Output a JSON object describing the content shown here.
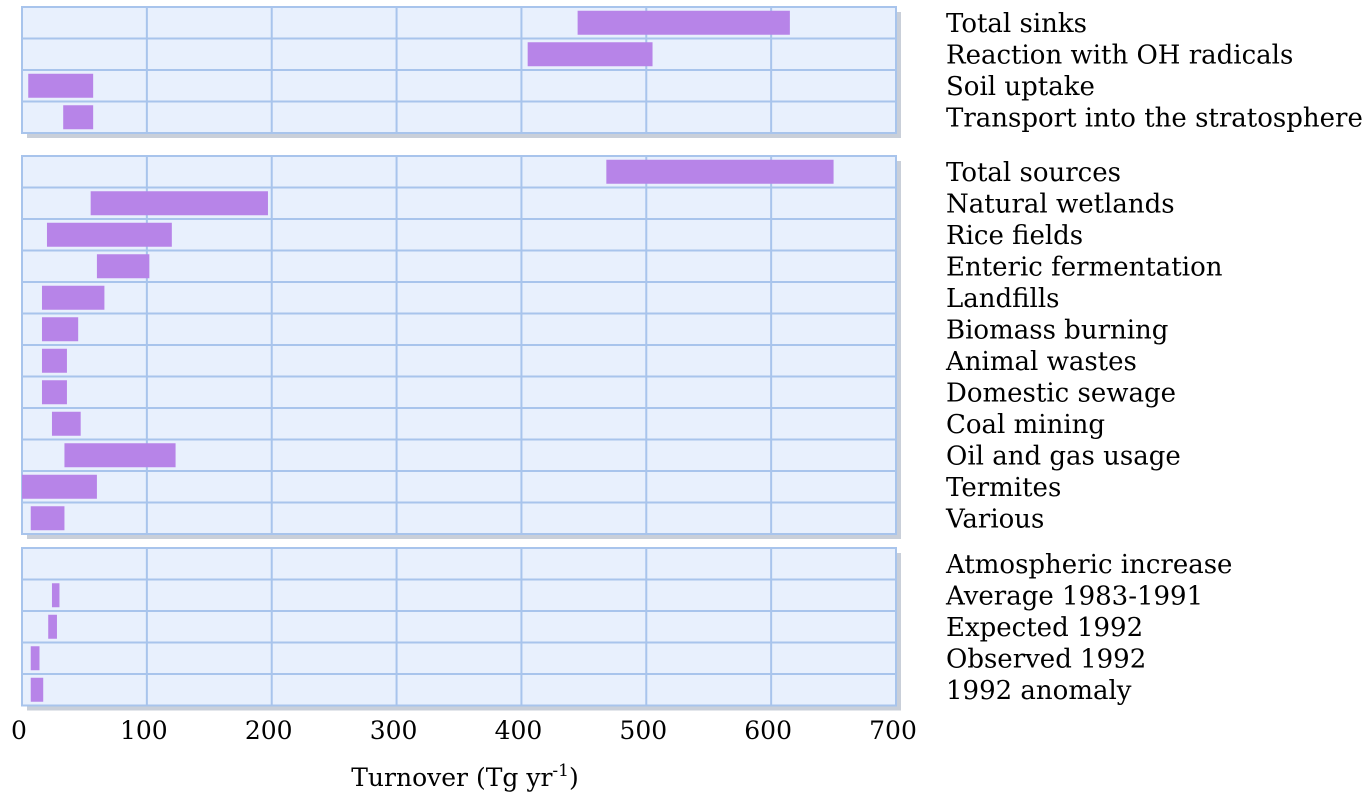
{
  "chart_data": {
    "type": "bar",
    "orientation": "horizontal-range",
    "xlabel": "Turnover (Tg yr",
    "xlabel_superscript": "-1",
    "xlabel_suffix": ")",
    "xlim": [
      0,
      700
    ],
    "xticks": [
      "0",
      "100",
      "200",
      "300",
      "400",
      "500",
      "600",
      "700"
    ],
    "grid": true,
    "colors": {
      "bar": "#b784e8",
      "panel_fill": "#e8f0fd",
      "grid": "#a8c4ec",
      "panel_shadow": "#c9cfd9"
    },
    "panels": [
      {
        "rows": [
          {
            "label": "Total sinks",
            "range": [
              445,
              615
            ]
          },
          {
            "label": "Reaction with OH radicals",
            "range": [
              405,
              505
            ]
          },
          {
            "label": "Soil uptake",
            "range": [
              5,
              57
            ]
          },
          {
            "label": "Transport into the stratosphere",
            "range": [
              33,
              57
            ]
          }
        ]
      },
      {
        "rows": [
          {
            "label": "Total sources",
            "range": [
              468,
              650
            ]
          },
          {
            "label": "Natural wetlands",
            "range": [
              55,
              197
            ]
          },
          {
            "label": "Rice fields",
            "range": [
              20,
              120
            ]
          },
          {
            "label": "Enteric fermentation",
            "range": [
              60,
              102
            ]
          },
          {
            "label": "Landfills",
            "range": [
              16,
              66
            ]
          },
          {
            "label": "Biomass burning",
            "range": [
              16,
              45
            ]
          },
          {
            "label": "Animal wastes",
            "range": [
              16,
              36
            ]
          },
          {
            "label": "Domestic sewage",
            "range": [
              16,
              36
            ]
          },
          {
            "label": "Coal mining",
            "range": [
              24,
              47
            ]
          },
          {
            "label": "Oil and gas usage",
            "range": [
              34,
              123
            ]
          },
          {
            "label": "Termites",
            "range": [
              0,
              60
            ]
          },
          {
            "label": "Various",
            "range": [
              7,
              34
            ]
          }
        ]
      },
      {
        "rows": [
          {
            "label": "Atmospheric increase",
            "range": null
          },
          {
            "label": "Average 1983-1991",
            "range": [
              24,
              30
            ]
          },
          {
            "label": "Expected 1992",
            "range": [
              21,
              28
            ]
          },
          {
            "label": "Observed 1992",
            "range": [
              7,
              14
            ]
          },
          {
            "label": "1992 anomaly",
            "range": [
              7,
              17
            ]
          }
        ]
      }
    ]
  }
}
